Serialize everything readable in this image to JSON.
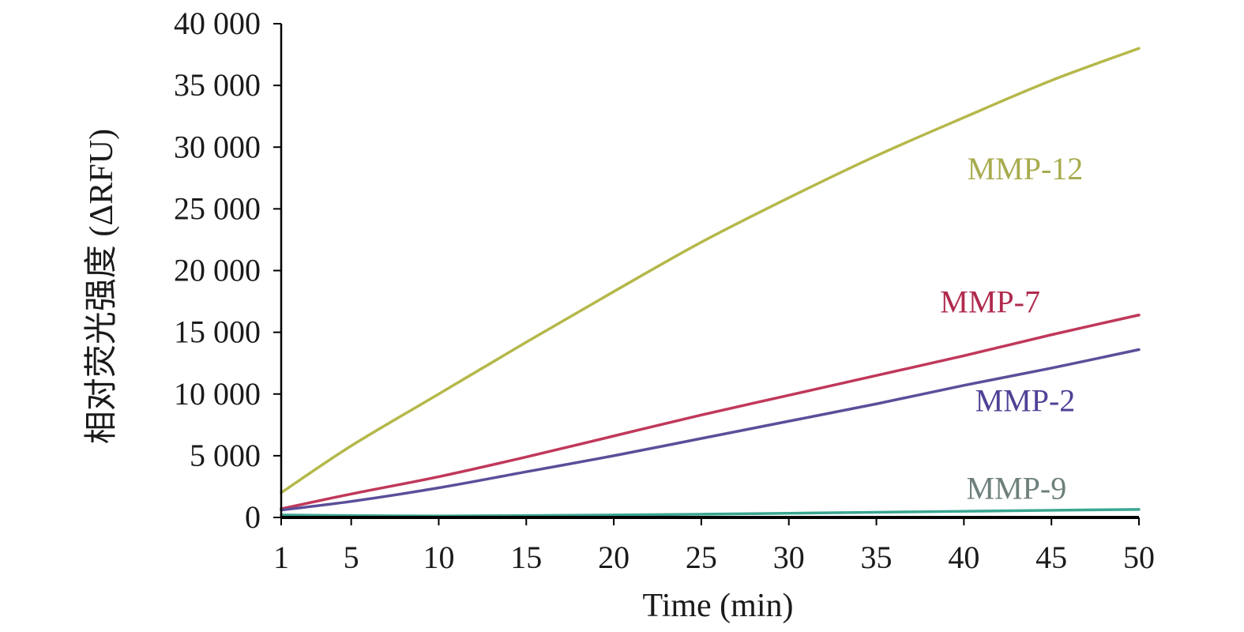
{
  "chart_data": {
    "type": "line",
    "title": "",
    "xlabel": "Time (min)",
    "ylabel": "相对荧光强度 (ΔRFU)",
    "xlim": [
      1,
      50
    ],
    "ylim": [
      0,
      40000
    ],
    "x_ticks": [
      1,
      5,
      10,
      15,
      20,
      25,
      30,
      35,
      40,
      45,
      50
    ],
    "x_tick_labels": [
      "1",
      "5",
      "10",
      "15",
      "20",
      "25",
      "30",
      "35",
      "40",
      "45",
      "50"
    ],
    "y_ticks": [
      0,
      5000,
      10000,
      15000,
      20000,
      25000,
      30000,
      35000,
      40000
    ],
    "y_tick_labels": [
      "0",
      "5 000",
      "10 000",
      "15 000",
      "20 000",
      "25 000",
      "30 000",
      "35 000",
      "40 000"
    ],
    "grid": false,
    "legend": "inline labels",
    "x": [
      1,
      5,
      10,
      15,
      20,
      25,
      30,
      35,
      40,
      45,
      50
    ],
    "series": [
      {
        "name": "MMP-12",
        "color": "#b5b84a",
        "label_color": "#a8ab4e",
        "values": [
          2000,
          5800,
          10000,
          14200,
          18300,
          22300,
          25900,
          29300,
          32400,
          35400,
          38000
        ]
      },
      {
        "name": "MMP-7",
        "color": "#c0385a",
        "label_color": "#b02a4e",
        "values": [
          700,
          1900,
          3300,
          4900,
          6600,
          8300,
          9900,
          11500,
          13100,
          14800,
          16400
        ]
      },
      {
        "name": "MMP-2",
        "color": "#5a4f9a",
        "label_color": "#4e4296",
        "values": [
          600,
          1300,
          2400,
          3700,
          5000,
          6400,
          7800,
          9200,
          10700,
          12100,
          13600
        ]
      },
      {
        "name": "MMP-9",
        "color": "#3aa690",
        "label_color": "#6e7f7c",
        "values": [
          200,
          150,
          120,
          150,
          200,
          260,
          340,
          420,
          500,
          580,
          650
        ]
      }
    ]
  }
}
